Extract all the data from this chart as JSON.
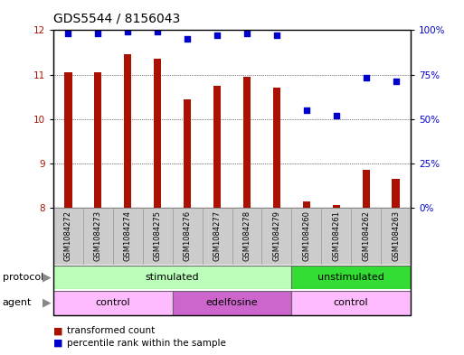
{
  "title": "GDS5544 / 8156043",
  "samples": [
    "GSM1084272",
    "GSM1084273",
    "GSM1084274",
    "GSM1084275",
    "GSM1084276",
    "GSM1084277",
    "GSM1084278",
    "GSM1084279",
    "GSM1084260",
    "GSM1084261",
    "GSM1084262",
    "GSM1084263"
  ],
  "bar_values": [
    11.05,
    11.05,
    11.45,
    11.35,
    10.45,
    10.75,
    10.95,
    10.7,
    8.15,
    8.05,
    8.85,
    8.65
  ],
  "dot_values_pct": [
    98,
    98,
    99,
    99,
    95,
    97,
    98,
    97,
    55,
    52,
    73,
    71
  ],
  "ylim_left": [
    8,
    12
  ],
  "ylim_right": [
    0,
    100
  ],
  "yticks_left": [
    8,
    9,
    10,
    11,
    12
  ],
  "yticks_right": [
    0,
    25,
    50,
    75,
    100
  ],
  "bar_color": "#aa1100",
  "dot_color": "#0000cc",
  "grid_color": "#000000",
  "protocol_labels": [
    {
      "text": "stimulated",
      "start": 0,
      "end": 7,
      "color": "#bbffbb"
    },
    {
      "text": "unstimulated",
      "start": 8,
      "end": 11,
      "color": "#33dd33"
    }
  ],
  "agent_labels": [
    {
      "text": "control",
      "start": 0,
      "end": 3,
      "color": "#ffbbff"
    },
    {
      "text": "edelfosine",
      "start": 4,
      "end": 7,
      "color": "#cc66cc"
    },
    {
      "text": "control",
      "start": 8,
      "end": 11,
      "color": "#ffbbff"
    }
  ],
  "legend_bar_label": "transformed count",
  "legend_dot_label": "percentile rank within the sample",
  "xlabel_protocol": "protocol",
  "xlabel_agent": "agent",
  "right_ytick_labels": [
    "0%",
    "25%",
    "50%",
    "75%",
    "100%"
  ],
  "tick_label_fontsize": 7.5,
  "title_fontsize": 10,
  "bar_width": 0.25,
  "sample_cell_color": "#cccccc",
  "arrow_color": "#888888"
}
